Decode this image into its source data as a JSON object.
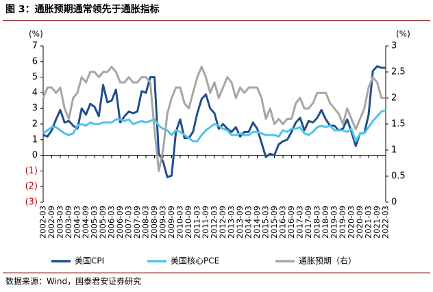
{
  "chart_data": {
    "type": "line",
    "title": "图 3：通胀预期通常领先于通胀指标",
    "source": "数据来源：Wind，国泰君安证券研究",
    "y_label": "(%)",
    "y2_label": "(%)",
    "categories": [
      "2002-03",
      null,
      "2002-09",
      null,
      "2003-03",
      null,
      "2003-09",
      null,
      "2004-03",
      null,
      "2004-09",
      null,
      "2005-03",
      null,
      "2005-09",
      null,
      "2006-03",
      null,
      "2006-09",
      null,
      "2007-03",
      null,
      "2007-09",
      null,
      "2008-03",
      null,
      "2008-09",
      null,
      "2009-03",
      null,
      "2009-09",
      null,
      "2010-03",
      null,
      "2010-09",
      null,
      "2011-03",
      null,
      "2011-09",
      null,
      "2012-03",
      null,
      "2012-09",
      null,
      "2013-03",
      null,
      "2013-09",
      null,
      "2014-03",
      null,
      "2014-09",
      null,
      "2015-03",
      null,
      "2015-09",
      null,
      "2016-03",
      null,
      "2016-09",
      null,
      "2017-03",
      null,
      "2017-09",
      null,
      "2018-03",
      null,
      "2018-09",
      null,
      "2019-03",
      null,
      "2019-09",
      null,
      "2020-03",
      null,
      "2020-09",
      null,
      "2021-03",
      null,
      "2021-09",
      null,
      "2022-03"
    ],
    "series": [
      {
        "name": "美国CPI",
        "color": "#1f4e8c",
        "axis": "y",
        "values": [
          1.3,
          1.2,
          1.6,
          2.3,
          2.9,
          2.1,
          2.2,
          1.9,
          1.7,
          3.0,
          2.6,
          3.3,
          3.1,
          2.5,
          4.5,
          3.4,
          3.5,
          4.2,
          2.1,
          2.5,
          2.8,
          2.7,
          2.8,
          4.1,
          4.0,
          5.0,
          5.0,
          0.1,
          -0.4,
          -1.4,
          -1.3,
          1.5,
          2.3,
          1.1,
          1.1,
          1.5,
          2.7,
          3.6,
          3.9,
          3.0,
          2.7,
          1.7,
          2.0,
          1.7,
          1.5,
          1.8,
          1.2,
          1.5,
          1.5,
          2.1,
          1.7,
          0.8,
          -0.1,
          0.1,
          0.0,
          0.7,
          0.9,
          1.0,
          1.5,
          2.1,
          2.4,
          1.6,
          2.2,
          2.1,
          2.4,
          2.9,
          2.3,
          1.9,
          1.9,
          1.6,
          1.7,
          2.3,
          1.5,
          0.6,
          1.4,
          1.4,
          2.6,
          5.4,
          5.7,
          5.6,
          5.6
        ]
      },
      {
        "name": "美国核心PCE",
        "color": "#4fc3ec",
        "axis": "y",
        "values": [
          1.4,
          1.6,
          1.8,
          1.8,
          1.6,
          1.4,
          1.3,
          1.4,
          1.9,
          2.0,
          1.9,
          2.1,
          2.0,
          2.0,
          2.1,
          2.1,
          2.1,
          2.3,
          2.3,
          2.2,
          2.3,
          2.0,
          2.1,
          2.2,
          2.1,
          2.2,
          2.3,
          1.9,
          1.7,
          1.6,
          1.3,
          1.6,
          1.5,
          1.3,
          1.1,
          0.9,
          0.9,
          1.3,
          1.6,
          1.8,
          2.0,
          1.9,
          1.7,
          1.6,
          1.3,
          1.3,
          1.4,
          1.3,
          1.3,
          1.5,
          1.5,
          1.4,
          1.3,
          1.3,
          1.3,
          1.2,
          1.6,
          1.5,
          1.7,
          1.7,
          1.8,
          1.4,
          1.3,
          1.5,
          1.8,
          1.9,
          1.8,
          1.9,
          1.6,
          1.6,
          1.6,
          1.5,
          1.7,
          0.9,
          1.4,
          1.4,
          1.8,
          2.2,
          2.5,
          2.8,
          2.9
        ]
      },
      {
        "name": "通胀预期（右）",
        "color": "#a6a6a6",
        "axis": "y2",
        "values": [
          2.0,
          2.2,
          2.2,
          2.1,
          2.2,
          1.8,
          1.6,
          2.0,
          2.1,
          2.4,
          2.3,
          2.5,
          2.5,
          2.4,
          2.5,
          2.5,
          2.6,
          2.5,
          2.3,
          2.3,
          2.4,
          2.3,
          2.3,
          2.4,
          2.4,
          2.3,
          1.4,
          0.6,
          1.0,
          1.7,
          2.0,
          2.2,
          2.2,
          1.9,
          1.8,
          2.1,
          2.4,
          2.6,
          2.4,
          2.1,
          2.3,
          2.0,
          2.2,
          2.4,
          2.3,
          2.0,
          2.2,
          2.1,
          2.2,
          2.2,
          2.2,
          2.0,
          1.6,
          1.8,
          1.5,
          1.6,
          1.5,
          1.6,
          1.6,
          1.9,
          2.0,
          1.8,
          1.8,
          1.9,
          2.1,
          2.1,
          2.1,
          1.9,
          1.8,
          1.7,
          1.5,
          1.8,
          1.6,
          1.4,
          1.6,
          1.8,
          2.2,
          2.4,
          2.3,
          2.0,
          2.0
        ]
      }
    ],
    "ylim": [
      -3,
      7
    ],
    "yticks": [
      {
        "value": -3,
        "label": "(3)"
      },
      {
        "value": -2,
        "label": "(2)"
      },
      {
        "value": -1,
        "label": "(1)"
      },
      0,
      1,
      2,
      3,
      4,
      5,
      6,
      7
    ],
    "negative_tick_color": "#c00000",
    "y2lim": [
      0,
      3
    ],
    "y2ticks": [
      0,
      0.5,
      1,
      1.5,
      2,
      2.5,
      3
    ],
    "grid": false,
    "legend": "bottom"
  }
}
